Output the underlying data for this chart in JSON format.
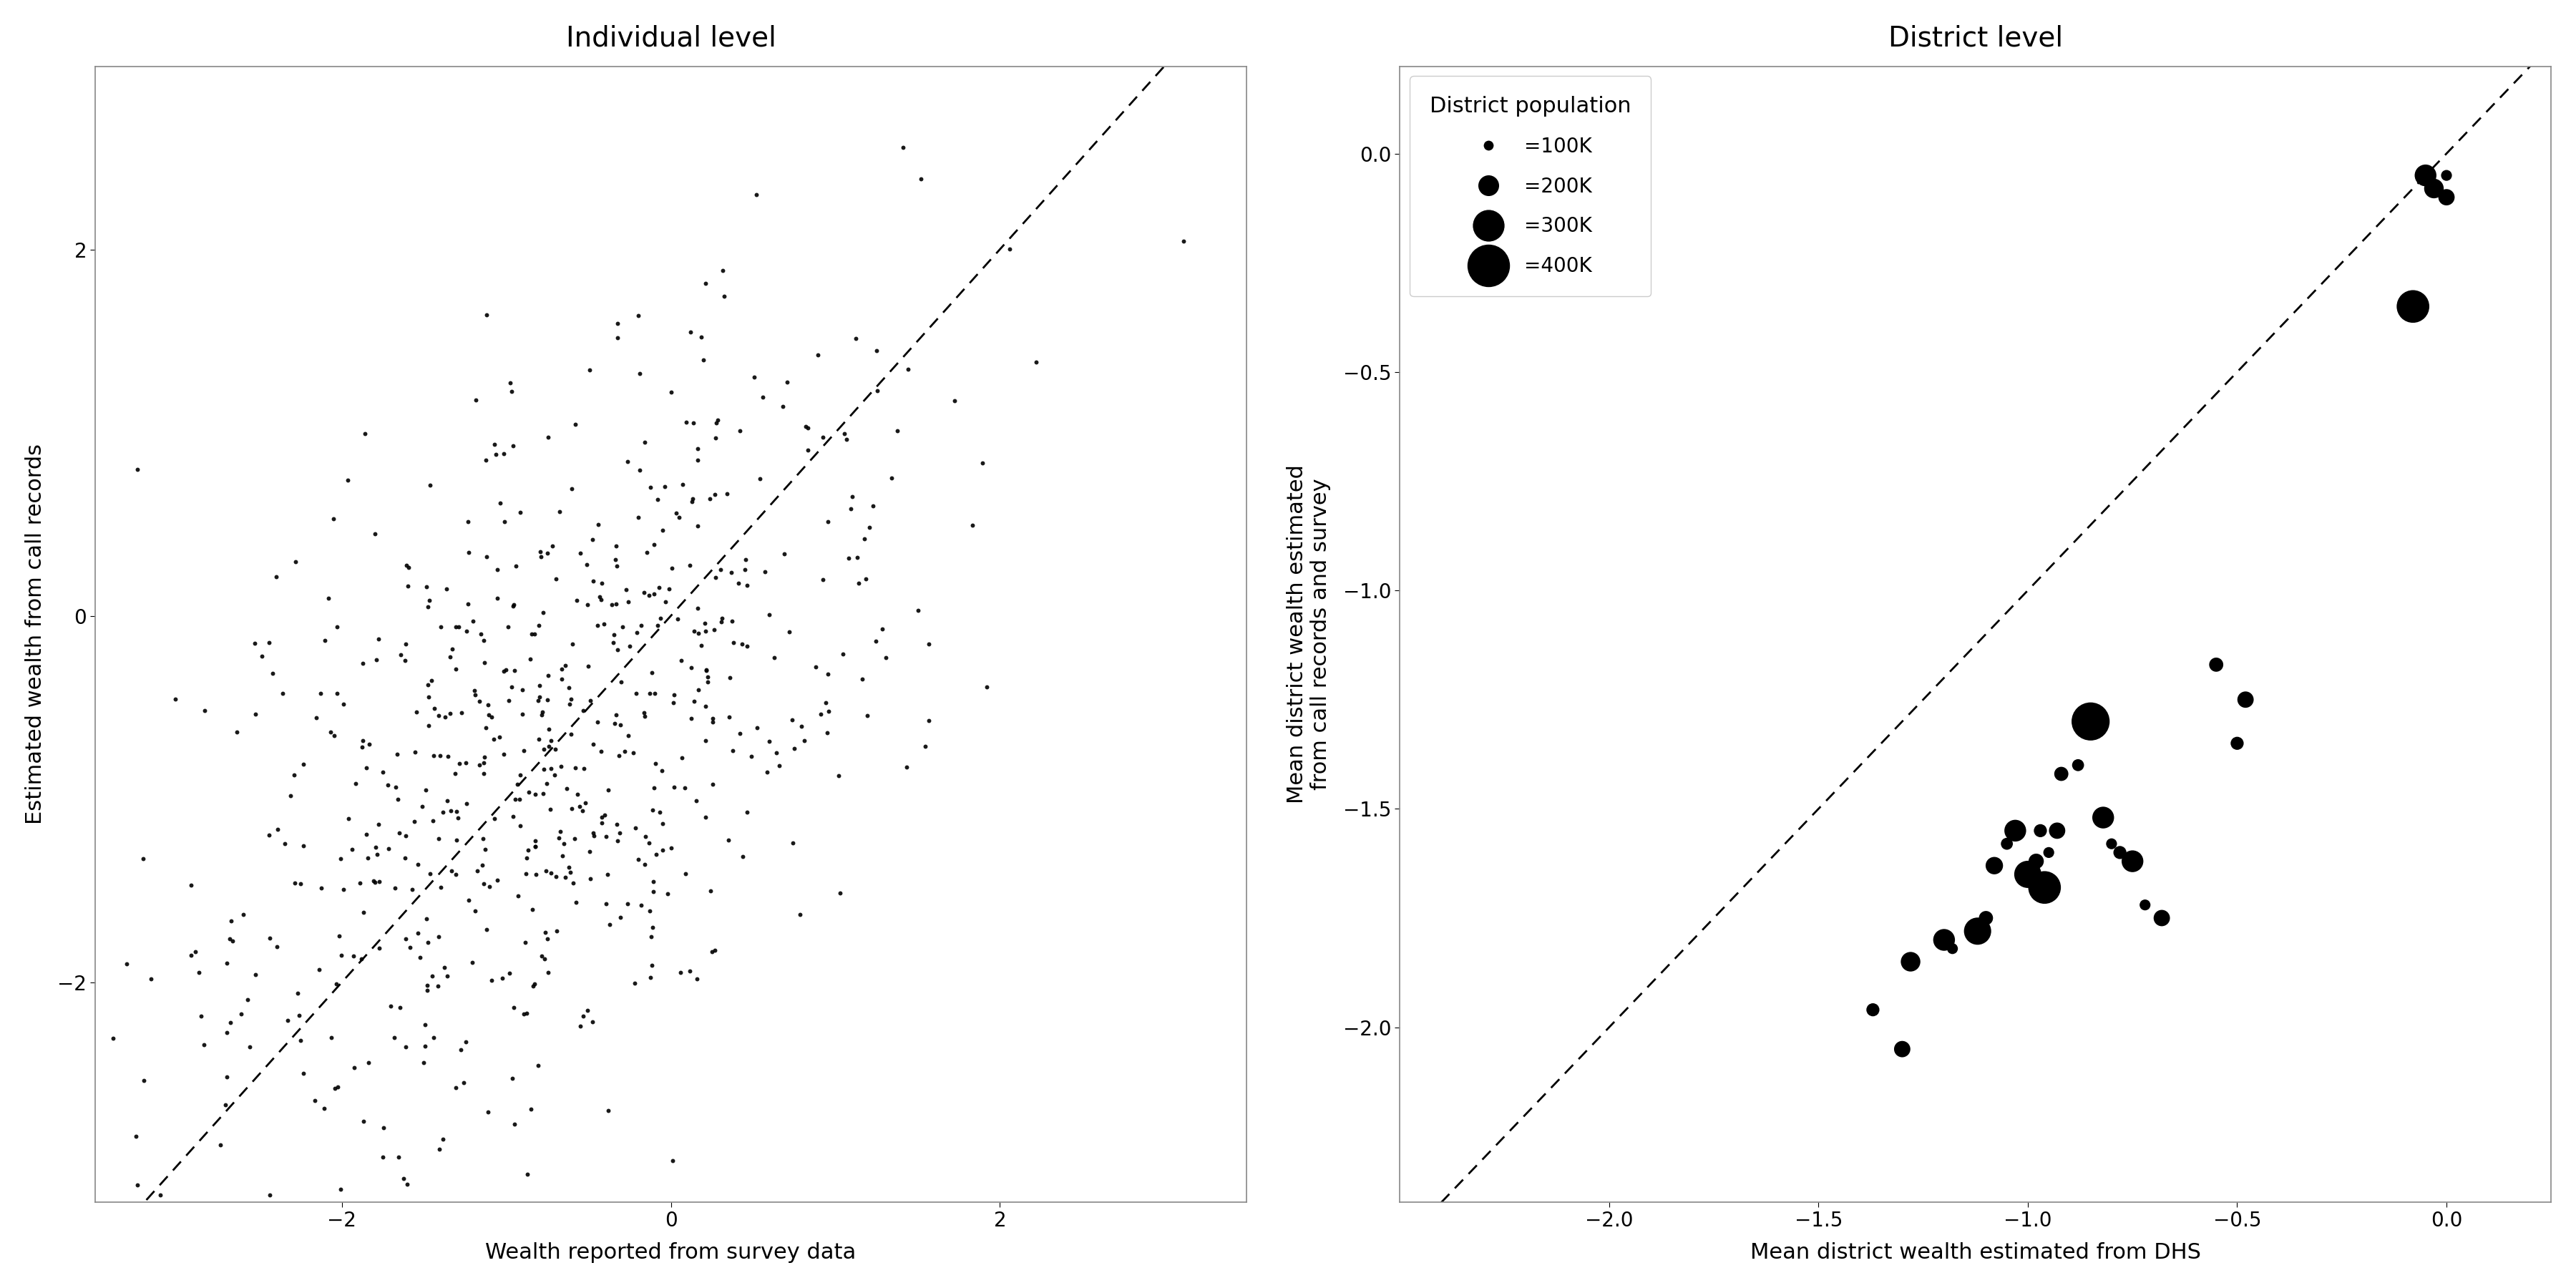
{
  "left_title": "Individual level",
  "right_title": "District level",
  "left_xlabel": "Wealth reported from survey data",
  "left_ylabel": "Estimated wealth from call records",
  "right_xlabel": "Mean district wealth estimated from DHS",
  "right_ylabel": "Mean district wealth estimated\nfrom call records and survey",
  "left_xlim": [
    -3.5,
    3.5
  ],
  "left_ylim": [
    -3.2,
    3.0
  ],
  "right_xlim": [
    -2.5,
    0.25
  ],
  "right_ylim": [
    -2.4,
    0.2
  ],
  "left_xticks": [
    -2,
    0,
    2
  ],
  "left_yticks": [
    -2,
    0,
    2
  ],
  "right_xticks": [
    -2.0,
    -1.5,
    -1.0,
    -0.5,
    0.0
  ],
  "right_yticks": [
    -2.0,
    -1.5,
    -1.0,
    -0.5,
    0.0
  ],
  "legend_title": "District population",
  "legend_sizes": [
    100,
    200,
    300,
    400
  ],
  "legend_labels": [
    "=100K",
    "=200K",
    "=300K",
    "=400K"
  ],
  "bg_color": "#ffffff",
  "point_color": "#000000",
  "individual_seed": 42,
  "individual_n": 650,
  "district_x": [
    -1.37,
    -1.3,
    -1.28,
    -1.2,
    -1.18,
    -1.12,
    -1.1,
    -1.08,
    -1.05,
    -1.03,
    -1.0,
    -0.98,
    -0.97,
    -0.96,
    -0.95,
    -0.93,
    -0.92,
    -0.88,
    -0.85,
    -0.82,
    -0.8,
    -0.78,
    -0.75,
    -0.72,
    -0.68,
    -0.55,
    -0.5,
    -0.48,
    -0.08,
    -0.05,
    -0.03,
    0.0,
    0.0
  ],
  "district_y": [
    -1.96,
    -2.05,
    -1.85,
    -1.8,
    -1.82,
    -1.78,
    -1.75,
    -1.63,
    -1.58,
    -1.55,
    -1.65,
    -1.62,
    -1.55,
    -1.68,
    -1.6,
    -1.55,
    -1.42,
    -1.4,
    -1.3,
    -1.52,
    -1.58,
    -1.6,
    -1.62,
    -1.72,
    -1.75,
    -1.17,
    -1.35,
    -1.25,
    -0.35,
    -0.05,
    -0.08,
    -0.05,
    -0.1
  ],
  "district_pop_k": [
    120,
    150,
    180,
    200,
    100,
    250,
    130,
    160,
    110,
    200,
    250,
    140,
    120,
    300,
    100,
    150,
    130,
    110,
    350,
    200,
    100,
    120,
    200,
    100,
    150,
    130,
    120,
    150,
    300,
    200,
    180,
    100,
    150
  ],
  "title_fontsize": 28,
  "label_fontsize": 22,
  "tick_fontsize": 20,
  "legend_fontsize": 20,
  "legend_title_fontsize": 22
}
